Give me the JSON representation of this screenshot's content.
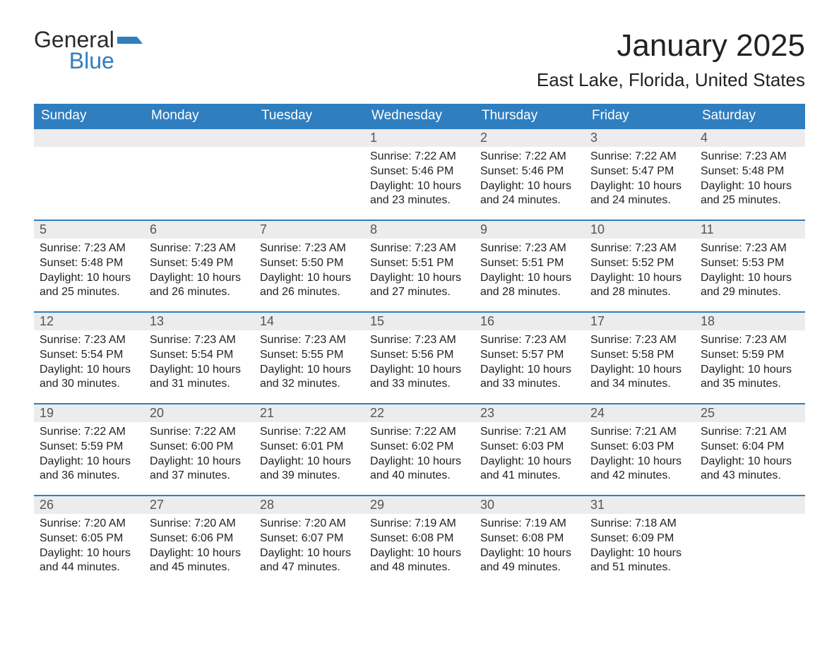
{
  "logo": {
    "word1": "General",
    "word2": "Blue",
    "accent_color": "#2f7ec0"
  },
  "header": {
    "month_title": "January 2025",
    "location": "East Lake, Florida, United States"
  },
  "styling": {
    "header_bg": "#2f7ec0",
    "header_text": "#ffffff",
    "daynum_bg": "#ececec",
    "row_top_border": "#2f7ec0",
    "body_text": "#222222",
    "page_bg": "#ffffff",
    "font_family": "Arial",
    "month_title_fontsize": 44,
    "location_fontsize": 26,
    "weekday_fontsize": 19,
    "daynum_fontsize": 18,
    "cell_fontsize": 16
  },
  "calendar": {
    "columns": 7,
    "weekdays": [
      "Sunday",
      "Monday",
      "Tuesday",
      "Wednesday",
      "Thursday",
      "Friday",
      "Saturday"
    ],
    "leading_blanks": 3,
    "days": [
      {
        "n": 1,
        "sunrise": "7:22 AM",
        "sunset": "5:46 PM",
        "daylight": "10 hours and 23 minutes."
      },
      {
        "n": 2,
        "sunrise": "7:22 AM",
        "sunset": "5:46 PM",
        "daylight": "10 hours and 24 minutes."
      },
      {
        "n": 3,
        "sunrise": "7:22 AM",
        "sunset": "5:47 PM",
        "daylight": "10 hours and 24 minutes."
      },
      {
        "n": 4,
        "sunrise": "7:23 AM",
        "sunset": "5:48 PM",
        "daylight": "10 hours and 25 minutes."
      },
      {
        "n": 5,
        "sunrise": "7:23 AM",
        "sunset": "5:48 PM",
        "daylight": "10 hours and 25 minutes."
      },
      {
        "n": 6,
        "sunrise": "7:23 AM",
        "sunset": "5:49 PM",
        "daylight": "10 hours and 26 minutes."
      },
      {
        "n": 7,
        "sunrise": "7:23 AM",
        "sunset": "5:50 PM",
        "daylight": "10 hours and 26 minutes."
      },
      {
        "n": 8,
        "sunrise": "7:23 AM",
        "sunset": "5:51 PM",
        "daylight": "10 hours and 27 minutes."
      },
      {
        "n": 9,
        "sunrise": "7:23 AM",
        "sunset": "5:51 PM",
        "daylight": "10 hours and 28 minutes."
      },
      {
        "n": 10,
        "sunrise": "7:23 AM",
        "sunset": "5:52 PM",
        "daylight": "10 hours and 28 minutes."
      },
      {
        "n": 11,
        "sunrise": "7:23 AM",
        "sunset": "5:53 PM",
        "daylight": "10 hours and 29 minutes."
      },
      {
        "n": 12,
        "sunrise": "7:23 AM",
        "sunset": "5:54 PM",
        "daylight": "10 hours and 30 minutes."
      },
      {
        "n": 13,
        "sunrise": "7:23 AM",
        "sunset": "5:54 PM",
        "daylight": "10 hours and 31 minutes."
      },
      {
        "n": 14,
        "sunrise": "7:23 AM",
        "sunset": "5:55 PM",
        "daylight": "10 hours and 32 minutes."
      },
      {
        "n": 15,
        "sunrise": "7:23 AM",
        "sunset": "5:56 PM",
        "daylight": "10 hours and 33 minutes."
      },
      {
        "n": 16,
        "sunrise": "7:23 AM",
        "sunset": "5:57 PM",
        "daylight": "10 hours and 33 minutes."
      },
      {
        "n": 17,
        "sunrise": "7:23 AM",
        "sunset": "5:58 PM",
        "daylight": "10 hours and 34 minutes."
      },
      {
        "n": 18,
        "sunrise": "7:23 AM",
        "sunset": "5:59 PM",
        "daylight": "10 hours and 35 minutes."
      },
      {
        "n": 19,
        "sunrise": "7:22 AM",
        "sunset": "5:59 PM",
        "daylight": "10 hours and 36 minutes."
      },
      {
        "n": 20,
        "sunrise": "7:22 AM",
        "sunset": "6:00 PM",
        "daylight": "10 hours and 37 minutes."
      },
      {
        "n": 21,
        "sunrise": "7:22 AM",
        "sunset": "6:01 PM",
        "daylight": "10 hours and 39 minutes."
      },
      {
        "n": 22,
        "sunrise": "7:22 AM",
        "sunset": "6:02 PM",
        "daylight": "10 hours and 40 minutes."
      },
      {
        "n": 23,
        "sunrise": "7:21 AM",
        "sunset": "6:03 PM",
        "daylight": "10 hours and 41 minutes."
      },
      {
        "n": 24,
        "sunrise": "7:21 AM",
        "sunset": "6:03 PM",
        "daylight": "10 hours and 42 minutes."
      },
      {
        "n": 25,
        "sunrise": "7:21 AM",
        "sunset": "6:04 PM",
        "daylight": "10 hours and 43 minutes."
      },
      {
        "n": 26,
        "sunrise": "7:20 AM",
        "sunset": "6:05 PM",
        "daylight": "10 hours and 44 minutes."
      },
      {
        "n": 27,
        "sunrise": "7:20 AM",
        "sunset": "6:06 PM",
        "daylight": "10 hours and 45 minutes."
      },
      {
        "n": 28,
        "sunrise": "7:20 AM",
        "sunset": "6:07 PM",
        "daylight": "10 hours and 47 minutes."
      },
      {
        "n": 29,
        "sunrise": "7:19 AM",
        "sunset": "6:08 PM",
        "daylight": "10 hours and 48 minutes."
      },
      {
        "n": 30,
        "sunrise": "7:19 AM",
        "sunset": "6:08 PM",
        "daylight": "10 hours and 49 minutes."
      },
      {
        "n": 31,
        "sunrise": "7:18 AM",
        "sunset": "6:09 PM",
        "daylight": "10 hours and 51 minutes."
      }
    ],
    "labels": {
      "sunrise_prefix": "Sunrise: ",
      "sunset_prefix": "Sunset: ",
      "daylight_prefix": "Daylight: "
    }
  }
}
